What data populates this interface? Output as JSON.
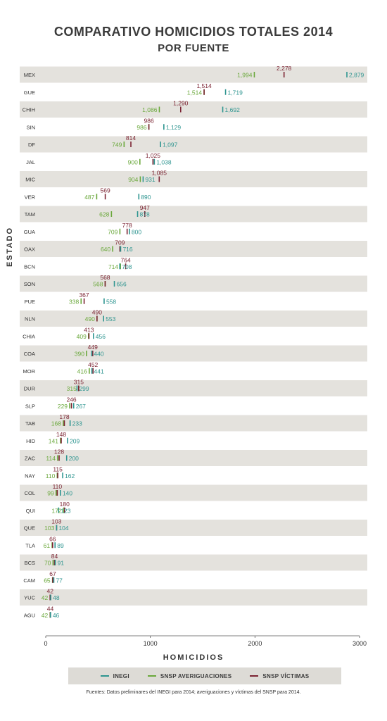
{
  "title_line1": "COMPARATIVO HOMICIDIOS TOTALES 2014",
  "title_line2": "POR FUENTE",
  "colors": {
    "inegi": "#2e9590",
    "snsp_averiguaciones": "#6aa83b",
    "snsp_victimas": "#7b2332",
    "band": "#e4e2dd"
  },
  "legend": {
    "inegi": "INEGI",
    "snsp_averiguaciones": "SNSP AVERIGUACIONES",
    "snsp_victimas": "SNSP VÍCTIMAS"
  },
  "source": "Fuentes: Datos preliminares del INEGI para 2014; averiguaciones y víctimas del SNSP para 2014.",
  "chart_data": {
    "type": "scatter",
    "title": "COMPARATIVO HOMICIDIOS TOTALES 2014",
    "subtitle": "POR FUENTE",
    "xlabel": "HOMICIDIOS",
    "ylabel": "ESTADO",
    "xlim": [
      0,
      3000
    ],
    "xticks": [
      "0",
      "1000",
      "2000",
      "3000"
    ],
    "grid": false,
    "legend_position": "bottom",
    "categories": [
      "MEX",
      "GUE",
      "CHIH",
      "SIN",
      "DF",
      "JAL",
      "MIC",
      "VER",
      "TAM",
      "GUA",
      "OAX",
      "BCN",
      "SON",
      "PUE",
      "NLN",
      "CHIA",
      "COA",
      "MOR",
      "DUR",
      "SLP",
      "TAB",
      "HID",
      "ZAC",
      "NAY",
      "COL",
      "QUI",
      "QUE",
      "TLA",
      "BCS",
      "CAM",
      "YUC",
      "AGU"
    ],
    "series": [
      {
        "name": "INEGI",
        "key": "inegi",
        "values": [
          2879,
          1719,
          1692,
          1129,
          1097,
          1038,
          931,
          890,
          878,
          800,
          716,
          708,
          656,
          558,
          553,
          456,
          440,
          441,
          299,
          267,
          233,
          209,
          200,
          162,
          140,
          123,
          104,
          89,
          91,
          77,
          48,
          46
        ],
        "labels": [
          "2,879",
          "1,719",
          "1,692",
          "1,129",
          "1,097",
          "1,038",
          "931",
          "890",
          "878",
          "800",
          "716",
          "708",
          "656",
          "558",
          "553",
          "456",
          "440",
          "441",
          "299",
          "267",
          "233",
          "209",
          "200",
          "162",
          "140",
          "123",
          "104",
          "89",
          "91",
          "77",
          "48",
          "46"
        ]
      },
      {
        "name": "SNSP AVERIGUACIONES",
        "key": "snsp_averiguaciones",
        "values": [
          1994,
          1514,
          1086,
          986,
          749,
          900,
          904,
          487,
          628,
          709,
          640,
          714,
          568,
          338,
          490,
          409,
          390,
          416,
          315,
          229,
          168,
          141,
          114,
          110,
          99,
          172,
          103,
          61,
          70,
          65,
          42,
          42
        ],
        "labels": [
          "1,994",
          "1,514",
          "1,086",
          "986",
          "749",
          "900",
          "904",
          "487",
          "628",
          "709",
          "640",
          "714",
          "568",
          "338",
          "490",
          "409",
          "390",
          "416",
          "315",
          "229",
          "168",
          "141",
          "114",
          "110",
          "99",
          "172",
          "103",
          "61",
          "70",
          "65",
          "42",
          "42"
        ]
      },
      {
        "name": "SNSP VÍCTIMAS",
        "key": "snsp_victimas",
        "values": [
          2278,
          1514,
          1290,
          986,
          814,
          1025,
          1085,
          569,
          947,
          778,
          709,
          764,
          568,
          367,
          490,
          413,
          449,
          452,
          315,
          246,
          178,
          148,
          128,
          115,
          110,
          180,
          103,
          66,
          84,
          67,
          42,
          44
        ],
        "labels": [
          "2,278",
          "1,514",
          "1,290",
          "986",
          "814",
          "1,025",
          "1,085",
          "569",
          "947",
          "778",
          "709",
          "764",
          "568",
          "367",
          "490",
          "413",
          "449",
          "452",
          "315",
          "246",
          "178",
          "148",
          "128",
          "115",
          "110",
          "180",
          "103",
          "66",
          "84",
          "67",
          "42",
          "44"
        ]
      }
    ]
  }
}
